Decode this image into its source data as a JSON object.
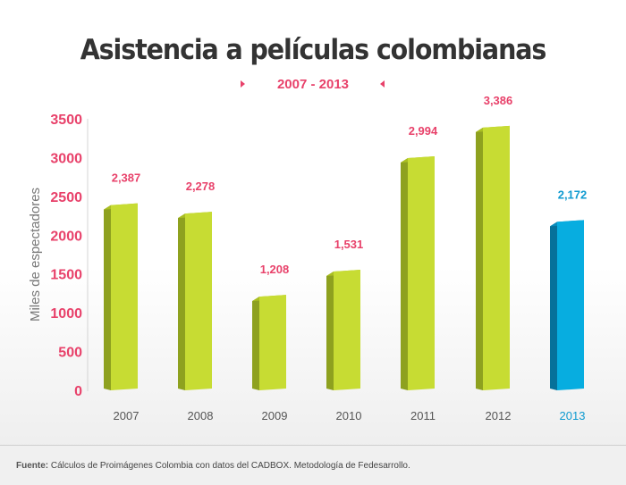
{
  "colors": {
    "accent": "#e8416a",
    "bar_face": "#c7dc33",
    "bar_side": "#8ea11f",
    "bar_top": "#aabf22",
    "highlight_face": "#07ade0",
    "highlight_side": "#06719a",
    "highlight_top": "#0a8cbb",
    "highlight_text": "#0e9ad0"
  },
  "footer": {
    "label": "Fuente:",
    "text": " Cálculos de Proimágenes Colombia con datos del CADBOX. Metodología de Fedesarrollo."
  },
  "chart_data": {
    "type": "bar",
    "title": "Asistencia a películas colombianas",
    "subtitle": "2007 - 2013",
    "xlabel": "",
    "ylabel": "Miles de espectadores",
    "ylim": [
      0,
      3500
    ],
    "yticks": [
      "0",
      "500",
      "1000",
      "1500",
      "2000",
      "2500",
      "3000",
      "3500"
    ],
    "ytick_values": [
      0,
      500,
      1000,
      1500,
      2000,
      2500,
      3000,
      3500
    ],
    "categories": [
      "2007",
      "2008",
      "2009",
      "2010",
      "2011",
      "2012",
      "2013"
    ],
    "values": [
      2387,
      2278,
      1208,
      1531,
      2994,
      3386,
      2172
    ],
    "value_labels": [
      "2,387",
      "2,278",
      "1,208",
      "1,531",
      "2,994",
      "3,386",
      "2,172"
    ],
    "highlight_category": "2013",
    "grid": false,
    "legend": "none"
  }
}
